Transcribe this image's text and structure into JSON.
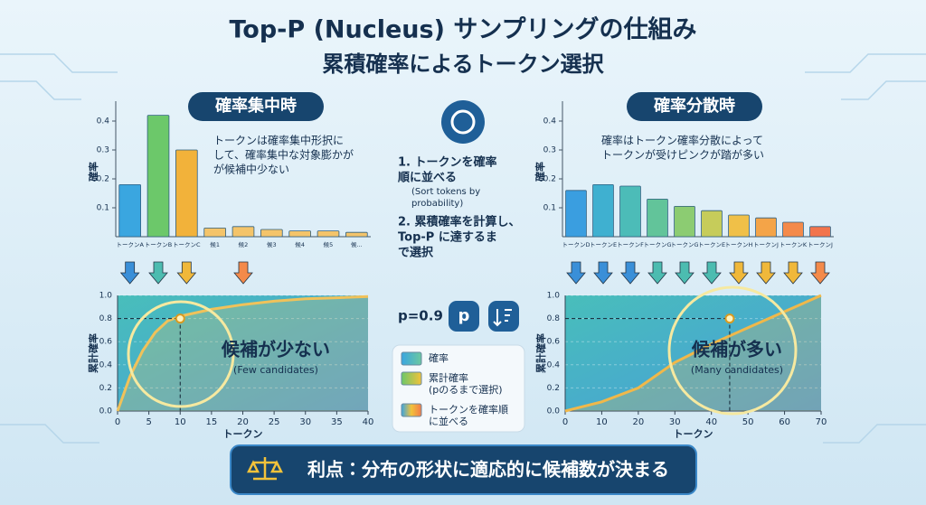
{
  "title": "Top-P (Nucleus) サンプリングの仕組み",
  "subtitle": "累積確率によるトークン選択",
  "left_header": "確率集中時",
  "right_header": "確率分散時",
  "steps": [
    {
      "lines": [
        "1. トークンを確率",
        "順に並べる"
      ],
      "note": [
        "(Sort tokens by",
        "probability)"
      ]
    },
    {
      "lines": [
        "2. 累積確率を計算し、",
        "Top-P に達するま",
        "で選択"
      ]
    }
  ],
  "p_label": "p=0.9",
  "legend": [
    {
      "lines": [
        "確率"
      ]
    },
    {
      "lines": [
        "累計確率",
        "(pのるまで選択)"
      ]
    },
    {
      "lines": [
        "トークンを確率順",
        "に並べる"
      ]
    }
  ],
  "footer": "利点：分布の形状に適応的に候補数が決まる",
  "chart_data": [
    {
      "type": "bar",
      "ylabel": "確率",
      "annotation": [
        "トークンは確率集中形択に",
        "して、確率集中な対象膨かが",
        "が候補中少ない"
      ],
      "categories": [
        "トークンA",
        "トークンB",
        "トークンC",
        "候1",
        "候2",
        "候3",
        "候4",
        "候5",
        "候..."
      ],
      "values": [
        0.18,
        0.42,
        0.3,
        0.03,
        0.035,
        0.025,
        0.02,
        0.02,
        0.015
      ],
      "colors": [
        "#3aa6e0",
        "#6cc86a",
        "#f2b23a",
        "#f4c46a",
        "#f4c46a",
        "#f4c46a",
        "#f4c46a",
        "#f4c46a",
        "#f4c46a"
      ],
      "ylim": [
        0,
        0.45
      ],
      "yticks": [
        0.1,
        0.2,
        0.3,
        0.4
      ]
    },
    {
      "type": "bar",
      "ylabel": "確率",
      "annotation": [
        "確率はトークン確率分散によって",
        "トークンが受けピンクが踏が多い"
      ],
      "categories": [
        "トークンD",
        "トークンE",
        "トークンF",
        "トークンG",
        "トークンG",
        "トークンE",
        "トークンH",
        "トークンJ",
        "トークンK",
        "トークンJ"
      ],
      "values": [
        0.16,
        0.18,
        0.175,
        0.13,
        0.105,
        0.09,
        0.075,
        0.065,
        0.05,
        0.035
      ],
      "colors": [
        "#3a9ee0",
        "#3fb0d0",
        "#4cbcb8",
        "#62c49a",
        "#8ccc72",
        "#c6cc5a",
        "#f0c048",
        "#f4a448",
        "#f48a4a",
        "#f2744c"
      ],
      "ylim": [
        0,
        0.45
      ],
      "yticks": [
        0.1,
        0.2,
        0.3,
        0.4
      ]
    },
    {
      "type": "line",
      "xlabel": "トークン",
      "ylabel": "累計確率",
      "annotation": [
        "候補が少ない",
        "(Few candidates)"
      ],
      "x": [
        0,
        2,
        4,
        6,
        8,
        10,
        15,
        20,
        25,
        30,
        35,
        40
      ],
      "series": [
        {
          "color": "#f0c25a",
          "values": [
            0,
            0.3,
            0.52,
            0.68,
            0.78,
            0.82,
            0.88,
            0.92,
            0.95,
            0.97,
            0.98,
            0.99
          ]
        }
      ],
      "highlight": {
        "x": 10,
        "y": 0.8
      },
      "xlim": [
        0,
        40
      ],
      "xticks": [
        0,
        5,
        10,
        15,
        20,
        25,
        30,
        35,
        40
      ],
      "ylim": [
        0,
        1.0
      ],
      "yticks": [
        {
          "value": 0,
          "label": "0.0"
        },
        {
          "value": 0.2,
          "label": "0.2"
        },
        {
          "value": 0.4,
          "label": "0.4"
        },
        {
          "value": 0.6,
          "label": "0.6"
        },
        {
          "value": 0.8,
          "label": "0.8"
        },
        {
          "value": 1.0,
          "label": "1.0"
        }
      ]
    },
    {
      "type": "line",
      "xlabel": "トークン",
      "ylabel": "累計確率",
      "annotation": [
        "候補が多い",
        "(Many candidates)"
      ],
      "x": [
        0,
        10,
        20,
        30,
        40,
        50,
        60,
        70
      ],
      "series": [
        {
          "color": "#f0b84a",
          "values": [
            0,
            0.08,
            0.2,
            0.42,
            0.58,
            0.72,
            0.86,
            1.0
          ]
        }
      ],
      "highlight": {
        "x": 45,
        "y": 0.8
      },
      "xlim": [
        0,
        70
      ],
      "xticks": [
        0,
        10,
        20,
        30,
        40,
        50,
        60,
        70
      ],
      "ylim": [
        0,
        1.0
      ],
      "yticks": [
        {
          "value": 0,
          "label": "0.0"
        },
        {
          "value": 0.2,
          "label": "0.2"
        },
        {
          "value": 0.4,
          "label": "0.4"
        },
        {
          "value": 0.6,
          "label": "0.6"
        },
        {
          "value": 0.8,
          "label": "0.8"
        },
        {
          "value": 1.0,
          "label": "1.0"
        }
      ]
    }
  ]
}
